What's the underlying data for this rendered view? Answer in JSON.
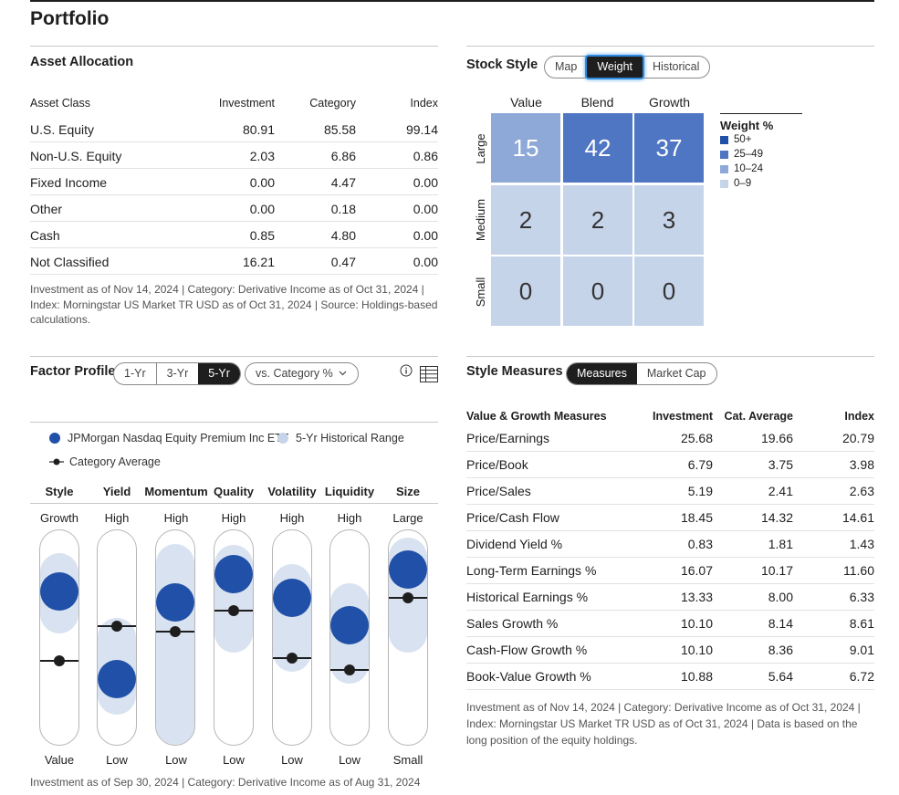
{
  "title": "Portfolio",
  "asset_allocation": {
    "title": "Asset Allocation",
    "headers": [
      "Asset Class",
      "Investment",
      "Category",
      "Index"
    ],
    "rows": [
      {
        "name": "U.S. Equity",
        "investment": "80.91",
        "category": "85.58",
        "index": "99.14"
      },
      {
        "name": "Non-U.S. Equity",
        "investment": "2.03",
        "category": "6.86",
        "index": "0.86"
      },
      {
        "name": "Fixed Income",
        "investment": "0.00",
        "category": "4.47",
        "index": "0.00"
      },
      {
        "name": "Other",
        "investment": "0.00",
        "category": "0.18",
        "index": "0.00"
      },
      {
        "name": "Cash",
        "investment": "0.85",
        "category": "4.80",
        "index": "0.00"
      },
      {
        "name": "Not Classified",
        "investment": "16.21",
        "category": "0.47",
        "index": "0.00"
      }
    ],
    "note": "Investment as of Nov 14, 2024 | Category: Derivative Income as of Oct 31, 2024 | Index: Morningstar US Market TR USD as of Oct 31, 2024 | Source: Holdings-based calculations."
  },
  "stock_style": {
    "title": "Stock Style",
    "tabs": [
      "Map",
      "Weight",
      "Historical"
    ],
    "active_tab": "Weight",
    "columns": [
      "Value",
      "Blend",
      "Growth"
    ],
    "rows": [
      "Large",
      "Medium",
      "Small"
    ],
    "cells": [
      [
        "15",
        "42",
        "37"
      ],
      [
        "2",
        "2",
        "3"
      ],
      [
        "0",
        "0",
        "0"
      ]
    ],
    "legend_title": "Weight %",
    "legend": [
      {
        "label": "50+",
        "color": "#2150a8"
      },
      {
        "label": "25–49",
        "color": "#4f76c2"
      },
      {
        "label": "10–24",
        "color": "#8ea8d8"
      },
      {
        "label": "0–9",
        "color": "#c6d4ea"
      }
    ]
  },
  "factor_profile": {
    "title": "Factor Profile",
    "periods": [
      "1-Yr",
      "3-Yr",
      "5-Yr"
    ],
    "active_period": "5-Yr",
    "compare_label": "vs. Category %",
    "info_icon": "info-icon",
    "table_icon": "table-icon",
    "legend_fund": "JPMorgan Nasdaq Equity Premium Inc ETF",
    "legend_range": "5-Yr Historical Range",
    "legend_category": "Category Average",
    "factors": [
      {
        "name": "Style",
        "high": "Growth",
        "low": "Value"
      },
      {
        "name": "Yield",
        "high": "High",
        "low": "Low"
      },
      {
        "name": "Momentum",
        "high": "High",
        "low": "Low"
      },
      {
        "name": "Quality",
        "high": "High",
        "low": "Low"
      },
      {
        "name": "Volatility",
        "high": "High",
        "low": "Low"
      },
      {
        "name": "Liquidity",
        "high": "High",
        "low": "Low"
      },
      {
        "name": "Size",
        "high": "Large",
        "low": "Small"
      }
    ],
    "note": "Investment as of Sep 30, 2024 | Category: Derivative Income as of Aug 31, 2024"
  },
  "style_measures": {
    "title": "Style Measures",
    "tabs": [
      "Measures",
      "Market Cap"
    ],
    "active_tab": "Measures",
    "headers": [
      "Value & Growth Measures",
      "Investment",
      "Cat. Average",
      "Index"
    ],
    "rows": [
      {
        "name": "Price/Earnings",
        "investment": "25.68",
        "category": "19.66",
        "index": "20.79"
      },
      {
        "name": "Price/Book",
        "investment": "6.79",
        "category": "3.75",
        "index": "3.98"
      },
      {
        "name": "Price/Sales",
        "investment": "5.19",
        "category": "2.41",
        "index": "2.63"
      },
      {
        "name": "Price/Cash Flow",
        "investment": "18.45",
        "category": "14.32",
        "index": "14.61"
      },
      {
        "name": "Dividend Yield %",
        "investment": "0.83",
        "category": "1.81",
        "index": "1.43"
      },
      {
        "name": "Long-Term Earnings %",
        "investment": "16.07",
        "category": "10.17",
        "index": "11.60"
      },
      {
        "name": "Historical Earnings %",
        "investment": "13.33",
        "category": "8.00",
        "index": "6.33"
      },
      {
        "name": "Sales Growth %",
        "investment": "10.10",
        "category": "8.14",
        "index": "8.61"
      },
      {
        "name": "Cash-Flow Growth %",
        "investment": "10.10",
        "category": "8.36",
        "index": "9.01"
      },
      {
        "name": "Book-Value Growth %",
        "investment": "10.88",
        "category": "5.64",
        "index": "6.72"
      }
    ],
    "note": "Investment as of Nov 14, 2024 | Category: Derivative Income as of Oct 31, 2024 | Index: Morningstar US Market TR USD as of Oct 31, 2024 | Data is based on the long position of the equity holdings."
  }
}
